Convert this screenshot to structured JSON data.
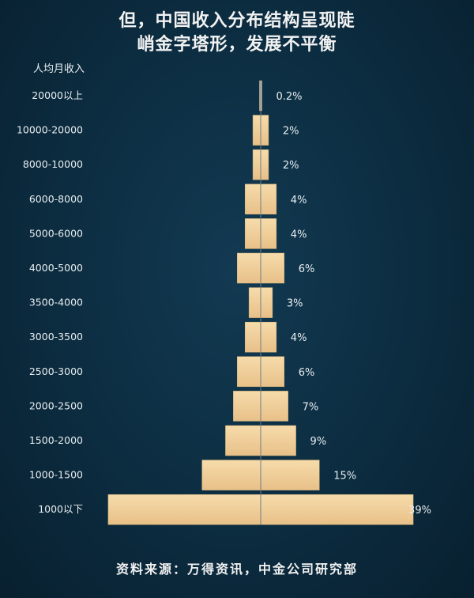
{
  "chart_data": {
    "type": "bar",
    "orientation": "horizontal-centered",
    "title_line1": "但，中国收入分布结构呈现陡",
    "title_line2": "峭金字塔形，发展不平衡",
    "ylabel": "人均月收入",
    "categories": [
      "20000以上",
      "10000-20000",
      "8000-10000",
      "6000-8000",
      "5000-6000",
      "4000-5000",
      "3500-4000",
      "3000-3500",
      "2500-3000",
      "2000-2500",
      "1500-2000",
      "1000-1500",
      "1000以下"
    ],
    "values": [
      0.2,
      2,
      2,
      4,
      4,
      6,
      3,
      4,
      6,
      7,
      9,
      15,
      39
    ],
    "value_labels": [
      "0.2%",
      "2%",
      "2%",
      "4%",
      "4%",
      "6%",
      "3%",
      "4%",
      "6%",
      "7%",
      "9%",
      "15%",
      "39%"
    ],
    "grid": false,
    "bar_color": "#f2d29a",
    "source": "资料来源：万得资讯，中金公司研究部"
  }
}
